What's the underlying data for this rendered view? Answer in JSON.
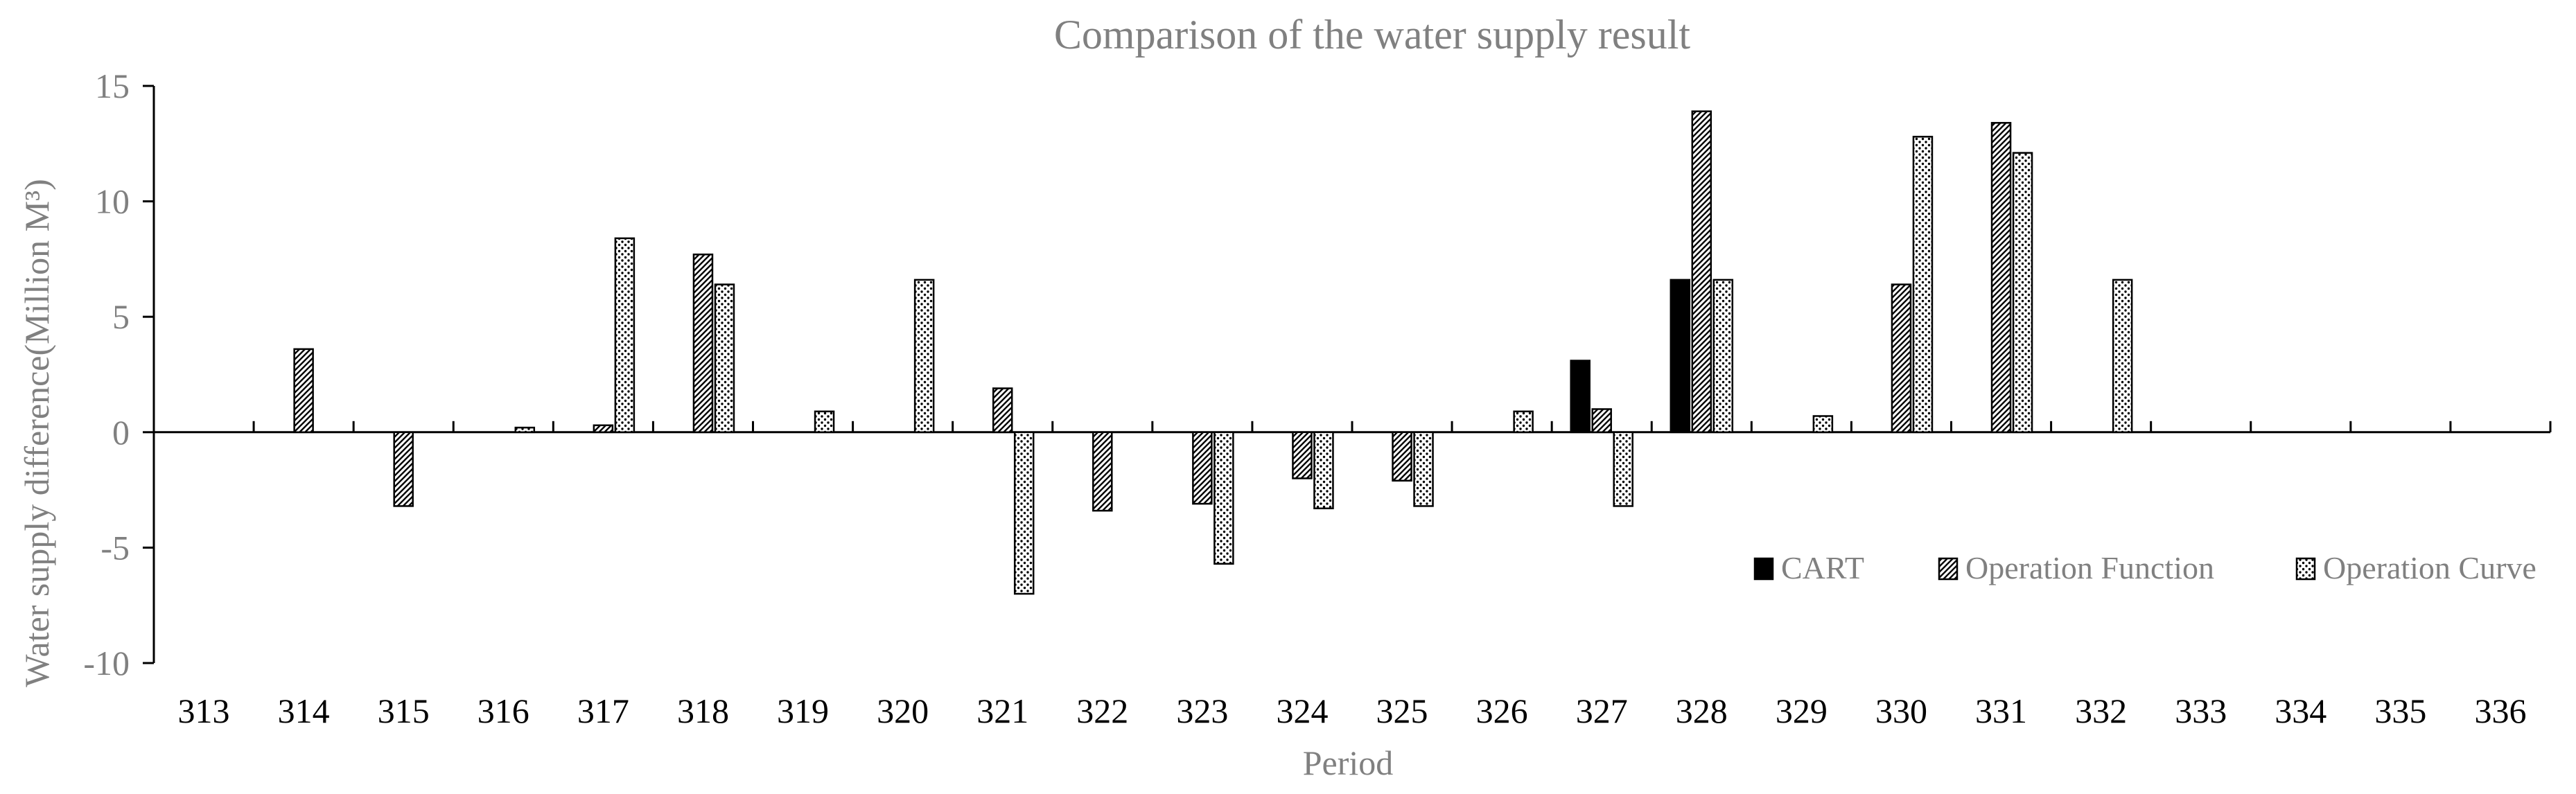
{
  "chart_data": {
    "type": "bar",
    "title": "Comparison of the water supply result",
    "xlabel": "Period",
    "ylabel": "Water supply difference(Million M³)",
    "ylim": [
      -10,
      15
    ],
    "yticks": [
      15,
      10,
      5,
      0,
      -5,
      -10
    ],
    "grid": false,
    "legend_position": "bottom-right",
    "categories": [
      "313",
      "314",
      "315",
      "316",
      "317",
      "318",
      "319",
      "320",
      "321",
      "322",
      "323",
      "324",
      "325",
      "326",
      "327",
      "328",
      "329",
      "330",
      "331",
      "332",
      "333",
      "334",
      "335",
      "336"
    ],
    "series": [
      {
        "name": "CART",
        "pattern": "solid",
        "values": [
          0,
          0,
          0,
          0,
          0,
          0,
          0,
          0,
          0,
          0,
          0,
          0,
          0,
          0,
          3.1,
          6.6,
          0,
          0,
          0,
          0,
          0,
          0,
          0,
          0
        ]
      },
      {
        "name": "Operation Function",
        "pattern": "diagonal",
        "values": [
          0,
          3.6,
          -3.2,
          0,
          0.3,
          7.7,
          0,
          0,
          1.9,
          -3.4,
          -3.1,
          -2.0,
          -2.1,
          0,
          1.0,
          13.9,
          0,
          6.4,
          13.4,
          0,
          0,
          0,
          0,
          0
        ]
      },
      {
        "name": "Operation Curve",
        "pattern": "dotted",
        "values": [
          0,
          0,
          0,
          0.2,
          8.4,
          6.4,
          0.9,
          6.6,
          -7.0,
          0,
          -5.7,
          -3.3,
          -3.2,
          0.9,
          -3.2,
          6.6,
          0.7,
          12.8,
          12.1,
          6.6,
          0,
          0,
          0,
          0
        ]
      }
    ],
    "colors": {
      "axis": "#000000",
      "text": "#808080",
      "bar_fill": "#ffffff",
      "bar_stroke": "#000000",
      "solid": "#000000"
    }
  }
}
